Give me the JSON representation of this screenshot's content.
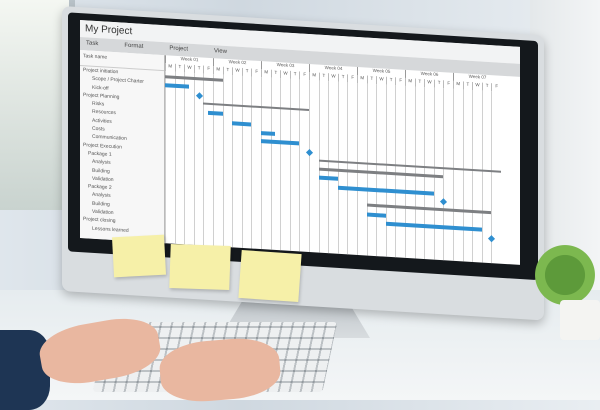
{
  "app": {
    "title": "My Project",
    "menu": [
      "Task",
      "Format",
      "Project",
      "View"
    ]
  },
  "tasklist": {
    "header": "Task name",
    "rows": [
      "Project initiation",
      "Scope / Project Charter",
      "Kick-off",
      "Project Planning",
      "Risks",
      "Resources",
      "Activities",
      "Costs",
      "Communication",
      "Project Execution",
      "Package 1",
      "Analysis",
      "Building",
      "Validation",
      "Package 2",
      "Analysis",
      "Building",
      "Validation",
      "Project closing",
      "Lessons learned"
    ]
  },
  "timeline": {
    "weeks": [
      "Week 01",
      "Week 02",
      "Week 03",
      "Week 04",
      "Week 05",
      "Week 06",
      "Week 07"
    ],
    "days": [
      "M",
      "T",
      "W",
      "T",
      "F"
    ]
  },
  "colors": {
    "task_bar": "#2f8fd0",
    "summary_bar": "#7d7f82",
    "milestone": "#2f8fd0"
  },
  "gantt": [
    {
      "type": "summary",
      "row": 0,
      "start": 0,
      "end": 6
    },
    {
      "type": "task",
      "row": 1,
      "start": 0,
      "end": 2.5
    },
    {
      "type": "milestone",
      "row": 2,
      "start": 3.5
    },
    {
      "type": "summary",
      "row": 3,
      "start": 4,
      "end": 15
    },
    {
      "type": "task",
      "row": 4,
      "start": 4.5,
      "end": 6
    },
    {
      "type": "task",
      "row": 5,
      "start": 7,
      "end": 9
    },
    {
      "type": "task",
      "row": 6,
      "start": 10,
      "end": 11.5
    },
    {
      "type": "task",
      "row": 7,
      "start": 10,
      "end": 14
    },
    {
      "type": "milestone",
      "row": 8,
      "start": 15
    },
    {
      "type": "summary",
      "row": 9,
      "start": 16,
      "end": 35
    },
    {
      "type": "summary",
      "row": 10,
      "start": 16,
      "end": 29
    },
    {
      "type": "task",
      "row": 11,
      "start": 16,
      "end": 18
    },
    {
      "type": "task",
      "row": 12,
      "start": 18,
      "end": 28
    },
    {
      "type": "milestone",
      "row": 13,
      "start": 29
    },
    {
      "type": "summary",
      "row": 14,
      "start": 21,
      "end": 34
    },
    {
      "type": "task",
      "row": 15,
      "start": 21,
      "end": 23
    },
    {
      "type": "task",
      "row": 16,
      "start": 23,
      "end": 33
    },
    {
      "type": "milestone",
      "row": 17,
      "start": 34
    }
  ]
}
